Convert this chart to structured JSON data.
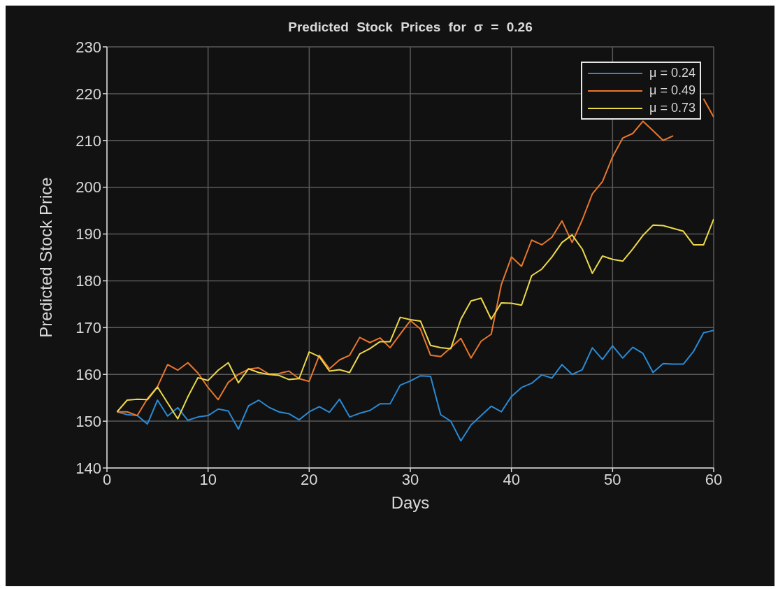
{
  "chart_data": {
    "type": "line",
    "title": "Predicted Stock Prices for σ = 0.26",
    "xlabel": "Days",
    "ylabel": "Predicted Stock Price",
    "x": [
      1,
      2,
      3,
      4,
      5,
      6,
      7,
      8,
      9,
      10,
      11,
      12,
      13,
      14,
      15,
      16,
      17,
      18,
      19,
      20,
      21,
      22,
      23,
      24,
      25,
      26,
      27,
      28,
      29,
      30,
      31,
      32,
      33,
      34,
      35,
      36,
      37,
      38,
      39,
      40,
      41,
      42,
      43,
      44,
      45,
      46,
      47,
      48,
      49,
      50,
      51,
      52,
      53,
      54,
      55,
      56,
      57,
      58,
      59,
      60
    ],
    "series": [
      {
        "name": "μ = 0.24",
        "color": "#2a8ad4",
        "values": [
          152.0,
          151.4,
          151.2,
          149.4,
          154.5,
          151.1,
          152.9,
          150.2,
          150.9,
          151.2,
          152.6,
          152.2,
          148.3,
          153.3,
          154.5,
          153.0,
          152.0,
          151.6,
          150.3,
          152.0,
          153.1,
          151.9,
          154.7,
          150.9,
          151.7,
          152.3,
          153.7,
          153.7,
          157.7,
          158.6,
          159.7,
          159.6,
          151.4,
          150.0,
          145.8,
          149.2,
          151.2,
          153.2,
          152.0,
          155.3,
          157.2,
          158.1,
          159.9,
          159.2,
          162.1,
          160.0,
          161.0,
          165.7,
          163.2,
          166.1,
          163.5,
          165.8,
          164.5,
          160.4,
          162.3,
          162.2,
          162.2,
          164.9,
          168.9,
          169.4
        ]
      },
      {
        "name": "μ = 0.49",
        "color": "#e8772e",
        "values": [
          152.0,
          152.0,
          151.2,
          154.8,
          157.4,
          162.1,
          160.9,
          162.5,
          160.3,
          157.2,
          154.6,
          158.3,
          160.0,
          161.1,
          161.4,
          160.1,
          160.2,
          160.7,
          159.1,
          158.5,
          164.1,
          161.2,
          163.1,
          164.1,
          167.9,
          166.8,
          167.8,
          165.7,
          168.6,
          171.5,
          169.7,
          164.1,
          163.8,
          165.7,
          167.7,
          163.5,
          167.1,
          168.6,
          179.2,
          185.1,
          183.1,
          188.7,
          187.7,
          189.3,
          192.8,
          188.2,
          193.0,
          198.6,
          201.2,
          206.5,
          210.5,
          211.5,
          214.1,
          212.1,
          210.0,
          211.0,
          null,
          null,
          218.9,
          215.0
        ]
      },
      {
        "name": "μ = 0.73",
        "color": "#ecd94a",
        "values": [
          152.0,
          154.5,
          154.7,
          154.6,
          157.3,
          153.9,
          150.5,
          155.2,
          159.3,
          158.7,
          160.9,
          162.5,
          158.2,
          161.2,
          160.4,
          160.0,
          159.8,
          158.9,
          159.1,
          164.8,
          163.8,
          160.7,
          161.0,
          160.4,
          164.4,
          165.5,
          167.0,
          167.0,
          172.2,
          171.7,
          171.4,
          166.2,
          165.7,
          165.5,
          171.8,
          175.7,
          176.3,
          171.8,
          175.3,
          175.2,
          174.8,
          181.1,
          182.5,
          185.1,
          188.2,
          189.8,
          186.8,
          181.6,
          185.3,
          184.6,
          184.2,
          186.8,
          189.7,
          191.9,
          191.8,
          191.2,
          190.6,
          187.7,
          187.7,
          193.2
        ]
      }
    ],
    "xlim": [
      0,
      60
    ],
    "xticks": [
      0,
      10,
      20,
      30,
      40,
      50,
      60
    ],
    "ylim": [
      140,
      230
    ],
    "yticks": [
      140,
      150,
      160,
      170,
      180,
      190,
      200,
      210,
      220,
      230
    ],
    "grid": true,
    "legend": "top right",
    "marker": "none",
    "line_style": "solid"
  }
}
